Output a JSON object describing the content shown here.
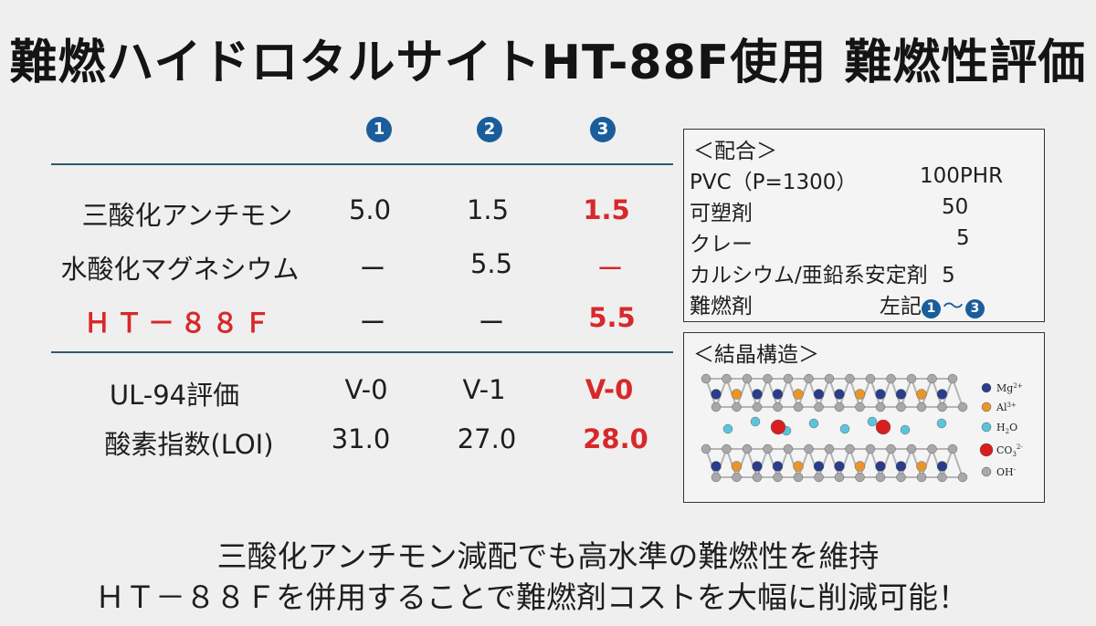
{
  "title": "難燃ハイドロタルサイトHT-88F使用 難燃性評価",
  "columns": [
    "1",
    "2",
    "3"
  ],
  "rows": {
    "sb2o3": {
      "label": "三酸化アンチモン",
      "values": [
        "5.0",
        "1.5",
        "1.5"
      ]
    },
    "mgoh": {
      "label": "水酸化マグネシウム",
      "values": [
        "ー",
        "5.5",
        "ー"
      ]
    },
    "ht88f": {
      "label": "ＨＴ－８８Ｆ",
      "values": [
        "ー",
        "ー",
        "5.5"
      ]
    },
    "ul94": {
      "label": "UL-94評価",
      "values": [
        "V-0",
        "V-1",
        "V-0"
      ]
    },
    "loi": {
      "label": "酸素指数(LOI)",
      "values": [
        "31.0",
        "27.0",
        "28.0"
      ]
    }
  },
  "formulation": {
    "heading": "＜配合＞",
    "lines": [
      {
        "name": "PVC（P=1300）",
        "value": "100PHR"
      },
      {
        "name": "可塑剤",
        "value": "50"
      },
      {
        "name": "クレー",
        "value": "5"
      },
      {
        "name": "カルシウム/亜鉛系安定剤",
        "value": "5"
      }
    ],
    "flame_label": "難燃剤",
    "flame_value_prefix": "左記",
    "flame_from": "1",
    "flame_tilde": "～",
    "flame_to": "3"
  },
  "structure": {
    "heading": "＜結晶構造＞",
    "legend": {
      "mg": "Mg",
      "mg_sup": "2+",
      "al": "Al",
      "al_sup": "3+",
      "h2o_a": "H",
      "h2o_sub": "2",
      "h2o_b": "O",
      "co3": "CO",
      "co3_sub": "3",
      "co3_sup": "2-",
      "oh": "OH",
      "oh_sup": "-"
    },
    "colors": {
      "mg": "#2a3c8c",
      "al": "#e8962a",
      "h2o": "#5bc4dc",
      "co3": "#d81e1e",
      "oh": "#a8a8a8"
    }
  },
  "footer": {
    "line1": "三酸化アンチモン減配でも高水準の難燃性を維持",
    "line2": "ＨＴ－８８Ｆを併用することで難燃剤コストを大幅に削減可能！"
  },
  "accent": {
    "blue": "#1a5d9b",
    "red": "#d8282a"
  }
}
